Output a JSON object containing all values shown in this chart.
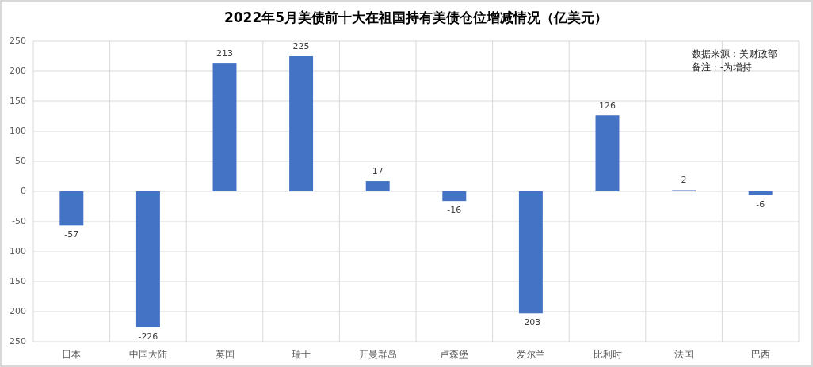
{
  "chart_data": {
    "type": "bar",
    "title": "2022年5月美债前十大在祖国持有美债仓位增减情况（亿美元）",
    "categories": [
      "日本",
      "中国大陆",
      "英国",
      "瑞士",
      "开曼群岛",
      "卢森堡",
      "爱尔兰",
      "比利时",
      "法国",
      "巴西"
    ],
    "values": [
      -57,
      -226,
      213,
      225,
      17,
      -16,
      -203,
      126,
      2,
      -6
    ],
    "color": "#4472c4",
    "ylim": [
      -250,
      250
    ],
    "yticks": [
      -250,
      -200,
      -150,
      -100,
      -50,
      0,
      50,
      100,
      150,
      200,
      250
    ],
    "grid": true,
    "data_labels": true,
    "annotations": [
      "数据来源：美财政部",
      "备注：-为增持"
    ]
  }
}
